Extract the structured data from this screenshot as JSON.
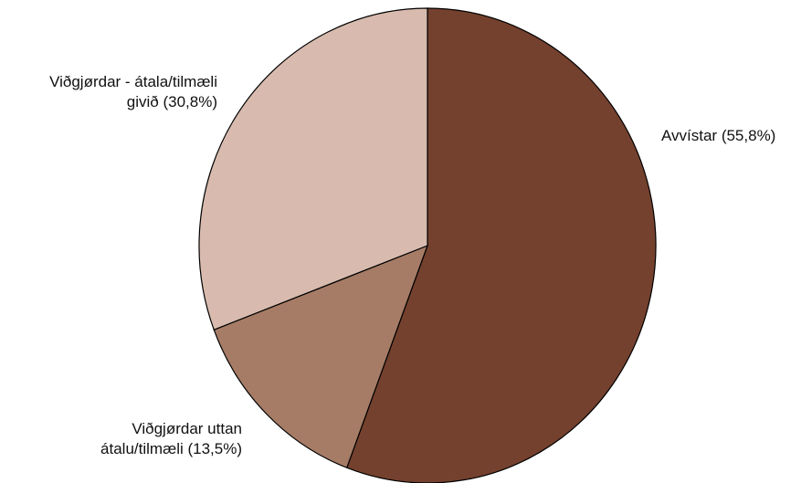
{
  "chart_data": {
    "type": "pie",
    "slices": [
      {
        "label": [
          "Avvístar (55,8%)"
        ],
        "value": 55.8,
        "color": "#74412e",
        "anchor": "start"
      },
      {
        "label": [
          "Viðgjørdar uttan",
          "átalu/tilmæli (13,5%)"
        ],
        "value": 13.5,
        "color": "#a67c66",
        "anchor": "end"
      },
      {
        "label": [
          "Viðgjørdar - átala/tilmæli",
          "givið (30,8%)"
        ],
        "value": 30.8,
        "color": "#d8bbae",
        "anchor": "end"
      }
    ],
    "start_angle": "12 o'clock",
    "direction": "clockwise",
    "legend": "none"
  }
}
